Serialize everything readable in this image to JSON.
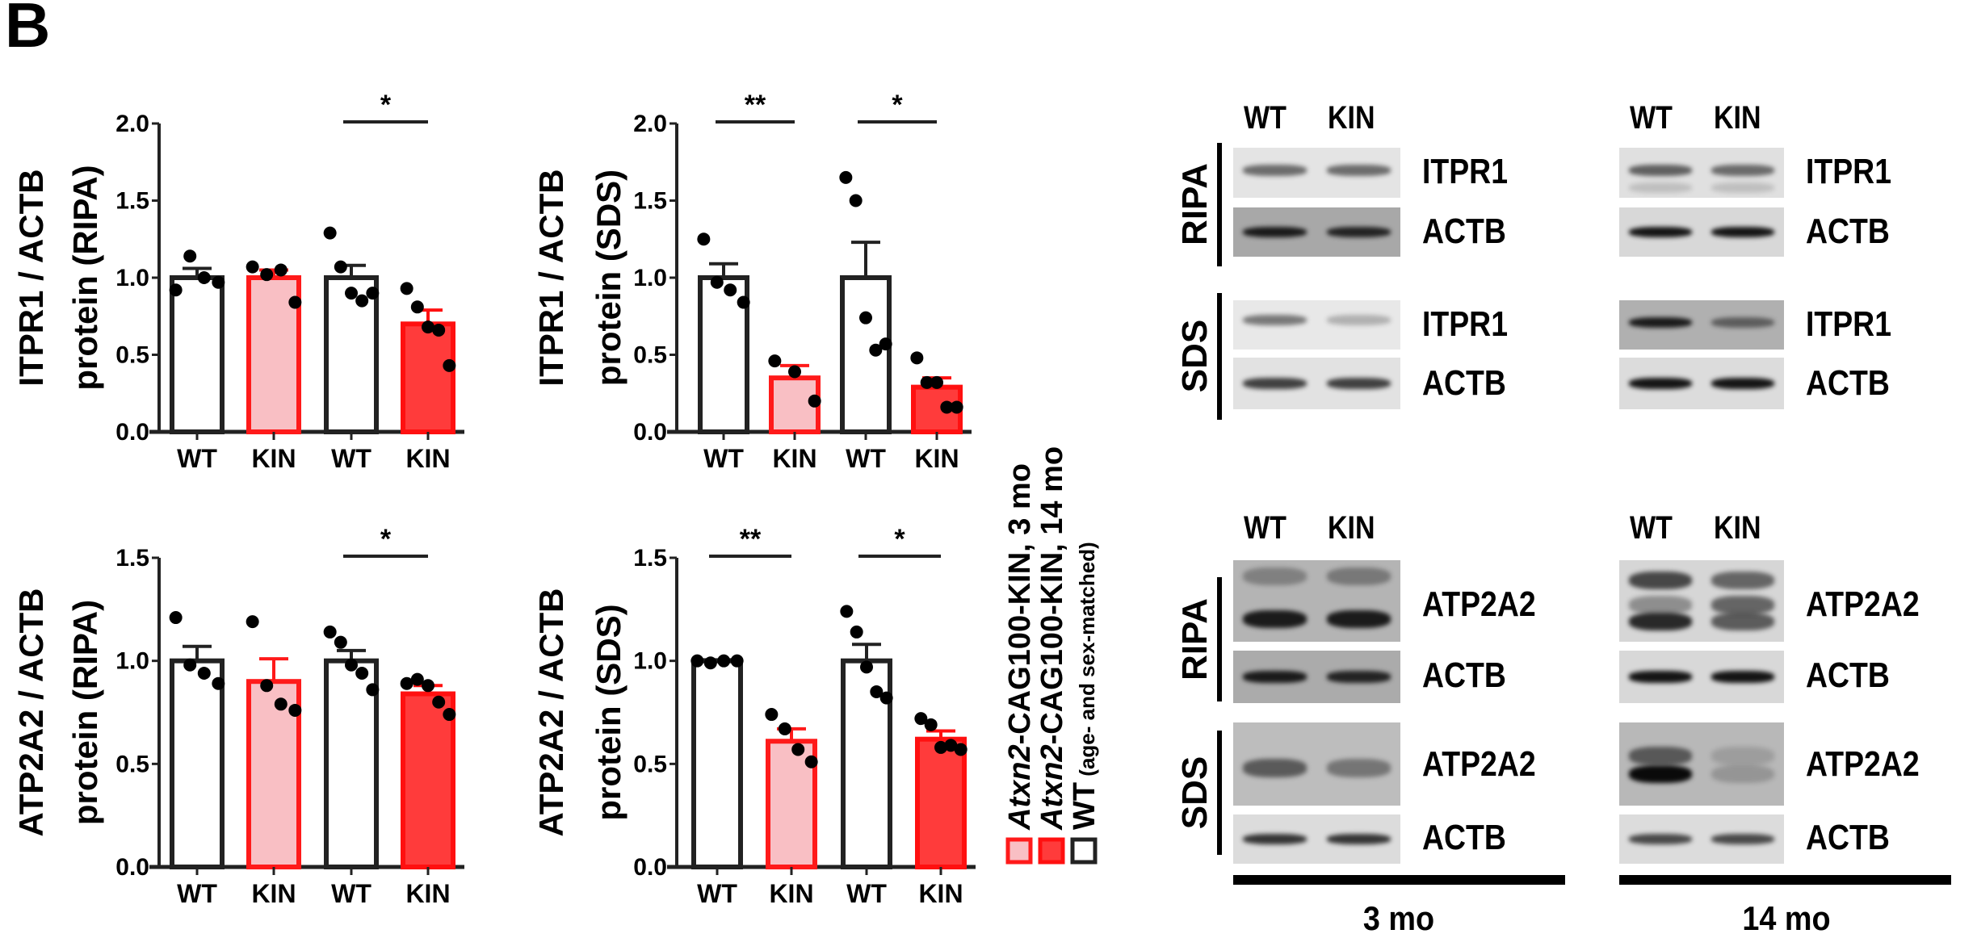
{
  "panel_letter": "B",
  "colors": {
    "wt_fill": "#ffffff",
    "wt_stroke": "#222222",
    "kin3_fill": "#f9bfc4",
    "kin3_stroke": "#ff1a1a",
    "kin14_fill": "#ff3b3b",
    "kin14_stroke": "#ff1010"
  },
  "chart_data": [
    {
      "type": "bar",
      "ylabel": [
        "ITPR1 / ACTB",
        "protein (RIPA)"
      ],
      "categories": [
        "WT",
        "KIN",
        "WT",
        "KIN"
      ],
      "groups": [
        "wt",
        "kin3",
        "wt",
        "kin14"
      ],
      "ylim": [
        0,
        2.0
      ],
      "yticks": [
        "0.0",
        "0.5",
        "1.0",
        "1.5",
        "2.0"
      ],
      "means": [
        1.0,
        1.0,
        1.0,
        0.7
      ],
      "sem": [
        0.06,
        0.05,
        0.08,
        0.09
      ],
      "points": [
        [
          0.92,
          1.14,
          1.0,
          0.97
        ],
        [
          1.07,
          1.02,
          1.05,
          0.84
        ],
        [
          1.29,
          1.07,
          0.9,
          0.85,
          0.9
        ],
        [
          0.93,
          0.81,
          0.68,
          0.66,
          0.43
        ]
      ],
      "significance": [
        {
          "from": 2,
          "to": 3,
          "label": "*"
        }
      ]
    },
    {
      "type": "bar",
      "ylabel": [
        "ITPR1 / ACTB",
        "protein (SDS)"
      ],
      "categories": [
        "WT",
        "KIN",
        "WT",
        "KIN"
      ],
      "groups": [
        "wt",
        "kin3",
        "wt",
        "kin14"
      ],
      "ylim": [
        0,
        2.0
      ],
      "yticks": [
        "0.0",
        "0.5",
        "1.0",
        "1.5",
        "2.0"
      ],
      "means": [
        1.0,
        0.35,
        1.0,
        0.29
      ],
      "sem": [
        0.09,
        0.08,
        0.23,
        0.06
      ],
      "points": [
        [
          1.25,
          0.97,
          0.92,
          0.84
        ],
        [
          0.46,
          0.39,
          0.2
        ],
        [
          1.65,
          1.5,
          0.74,
          0.53,
          0.57
        ],
        [
          0.48,
          0.32,
          0.32,
          0.16,
          0.16
        ]
      ],
      "significance": [
        {
          "from": 0,
          "to": 1,
          "label": "**"
        },
        {
          "from": 2,
          "to": 3,
          "label": "*"
        }
      ]
    },
    {
      "type": "bar",
      "ylabel": [
        "ATP2A2 / ACTB",
        "protein (RIPA)"
      ],
      "categories": [
        "WT",
        "KIN",
        "WT",
        "KIN"
      ],
      "groups": [
        "wt",
        "kin3",
        "wt",
        "kin14"
      ],
      "ylim": [
        0,
        1.5
      ],
      "yticks": [
        "0.0",
        "0.5",
        "1.0",
        "1.5"
      ],
      "means": [
        1.0,
        0.9,
        1.0,
        0.84
      ],
      "sem": [
        0.07,
        0.11,
        0.05,
        0.04
      ],
      "points": [
        [
          1.21,
          0.98,
          0.94,
          0.89
        ],
        [
          1.19,
          0.88,
          0.79,
          0.76
        ],
        [
          1.14,
          1.09,
          0.98,
          0.94,
          0.86
        ],
        [
          0.89,
          0.91,
          0.88,
          0.8,
          0.74
        ]
      ],
      "significance": [
        {
          "from": 2,
          "to": 3,
          "label": "*"
        }
      ]
    },
    {
      "type": "bar",
      "ylabel": [
        "ATP2A2 / ACTB",
        "protein (SDS)"
      ],
      "categories": [
        "WT",
        "KIN",
        "WT",
        "KIN"
      ],
      "groups": [
        "wt",
        "kin3",
        "wt",
        "kin14"
      ],
      "ylim": [
        0,
        1.5
      ],
      "yticks": [
        "0.0",
        "0.5",
        "1.0",
        "1.5"
      ],
      "means": [
        1.0,
        0.61,
        1.0,
        0.62
      ],
      "sem": [
        0.005,
        0.06,
        0.08,
        0.04
      ],
      "points": [
        [
          1.0,
          0.99,
          1.0,
          1.0
        ],
        [
          0.74,
          0.67,
          0.57,
          0.51
        ],
        [
          1.24,
          1.14,
          0.97,
          0.85,
          0.82
        ],
        [
          0.72,
          0.69,
          0.58,
          0.59,
          0.57
        ]
      ],
      "significance": [
        {
          "from": 0,
          "to": 1,
          "label": "**"
        },
        {
          "from": 2,
          "to": 3,
          "label": "*"
        }
      ]
    }
  ],
  "legend": [
    {
      "group": "kin3",
      "italic": "Atxn2",
      "text": "-CAG100-KIN, 3 mo",
      "small": ""
    },
    {
      "group": "kin14",
      "italic": "Atxn2",
      "text": "-CAG100-KIN, 14 mo",
      "small": ""
    },
    {
      "group": "wt",
      "italic": "",
      "text": "WT",
      "small": " (age- and sex-matched)"
    }
  ],
  "blots": {
    "lane_labels": [
      "WT",
      "KIN"
    ],
    "buffers": [
      "RIPA",
      "SDS"
    ],
    "top_proteins": [
      "ITPR1",
      "ACTB",
      "ITPR1",
      "ACTB"
    ],
    "bottom_proteins": [
      "ATP2A2",
      "ACTB",
      "ATP2A2",
      "ACTB"
    ],
    "ages": [
      "3 mo",
      "14 mo"
    ]
  }
}
